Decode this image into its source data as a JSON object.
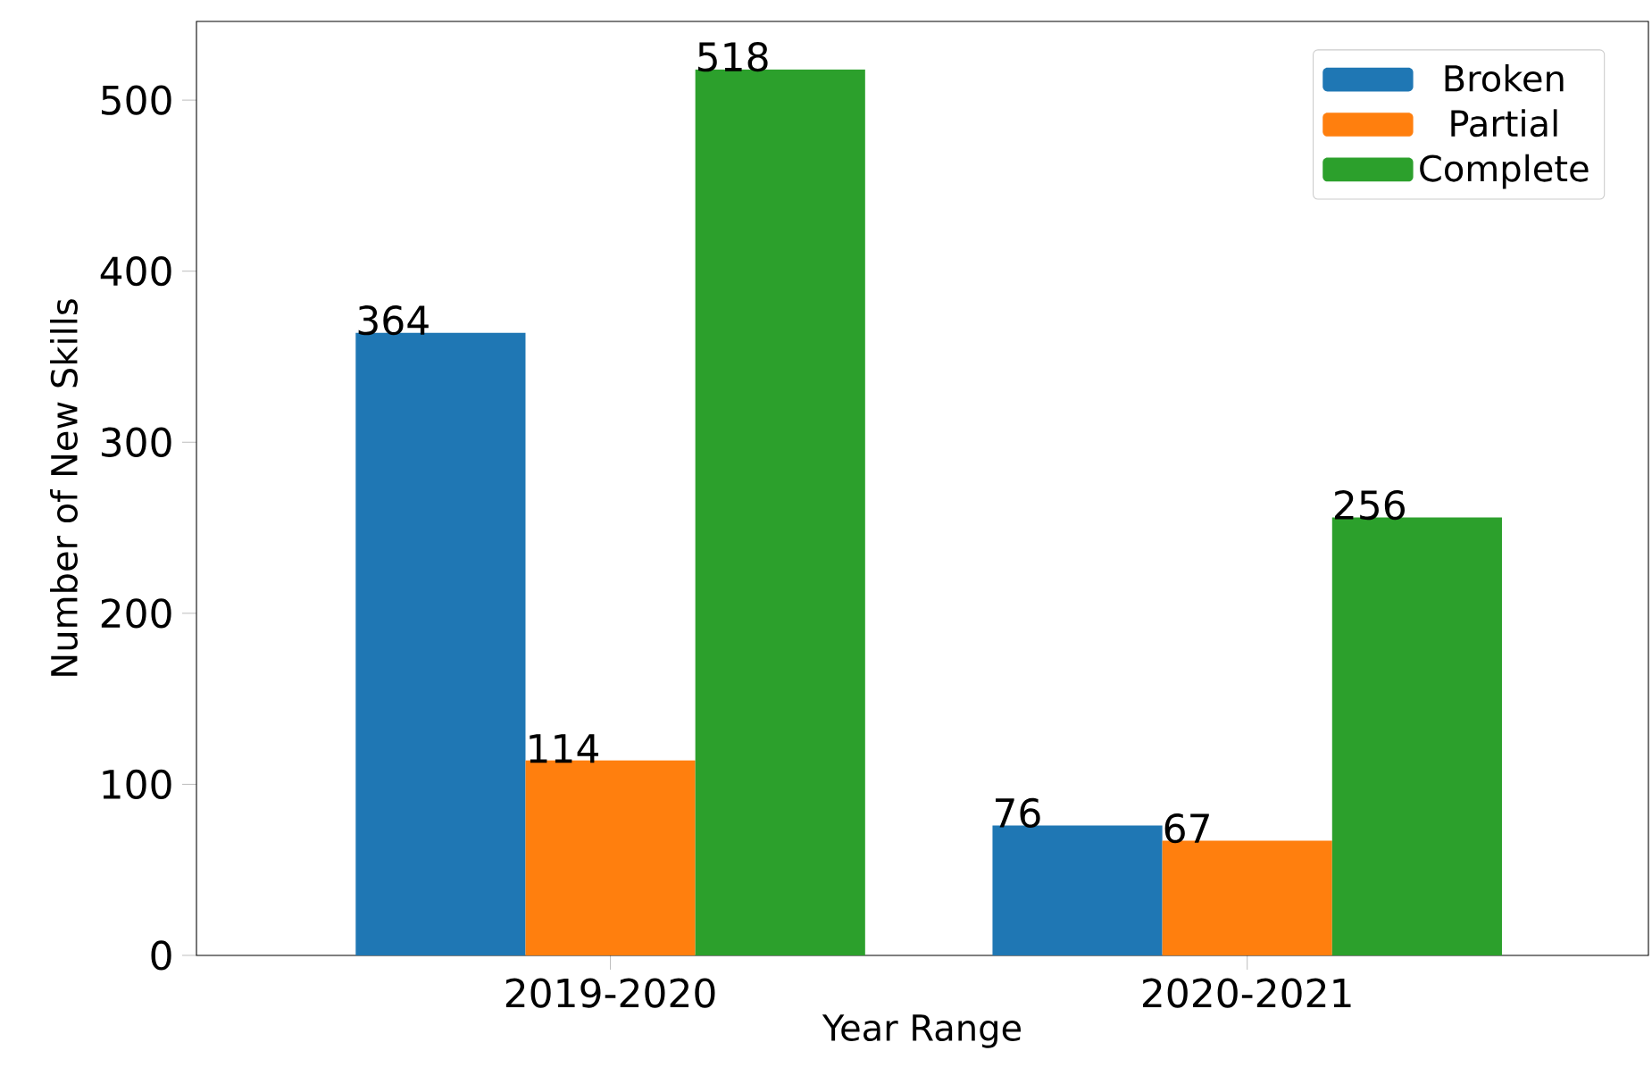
{
  "chart_data": {
    "type": "bar",
    "xlabel": "Year Range",
    "ylabel": "Number of New Skills",
    "categories": [
      "2019-2020",
      "2020-2021"
    ],
    "series": [
      {
        "name": "Broken",
        "color": "#1f77b4",
        "values": [
          364,
          76
        ]
      },
      {
        "name": "Partial",
        "color": "#ff7f0e",
        "values": [
          114,
          67
        ]
      },
      {
        "name": "Complete",
        "color": "#2ca02c",
        "values": [
          518,
          256
        ]
      }
    ],
    "ylim": [
      0,
      546
    ],
    "yticks": [
      0,
      100,
      200,
      300,
      400,
      500
    ],
    "data_labels": true,
    "legend": "top right",
    "grid": false
  }
}
